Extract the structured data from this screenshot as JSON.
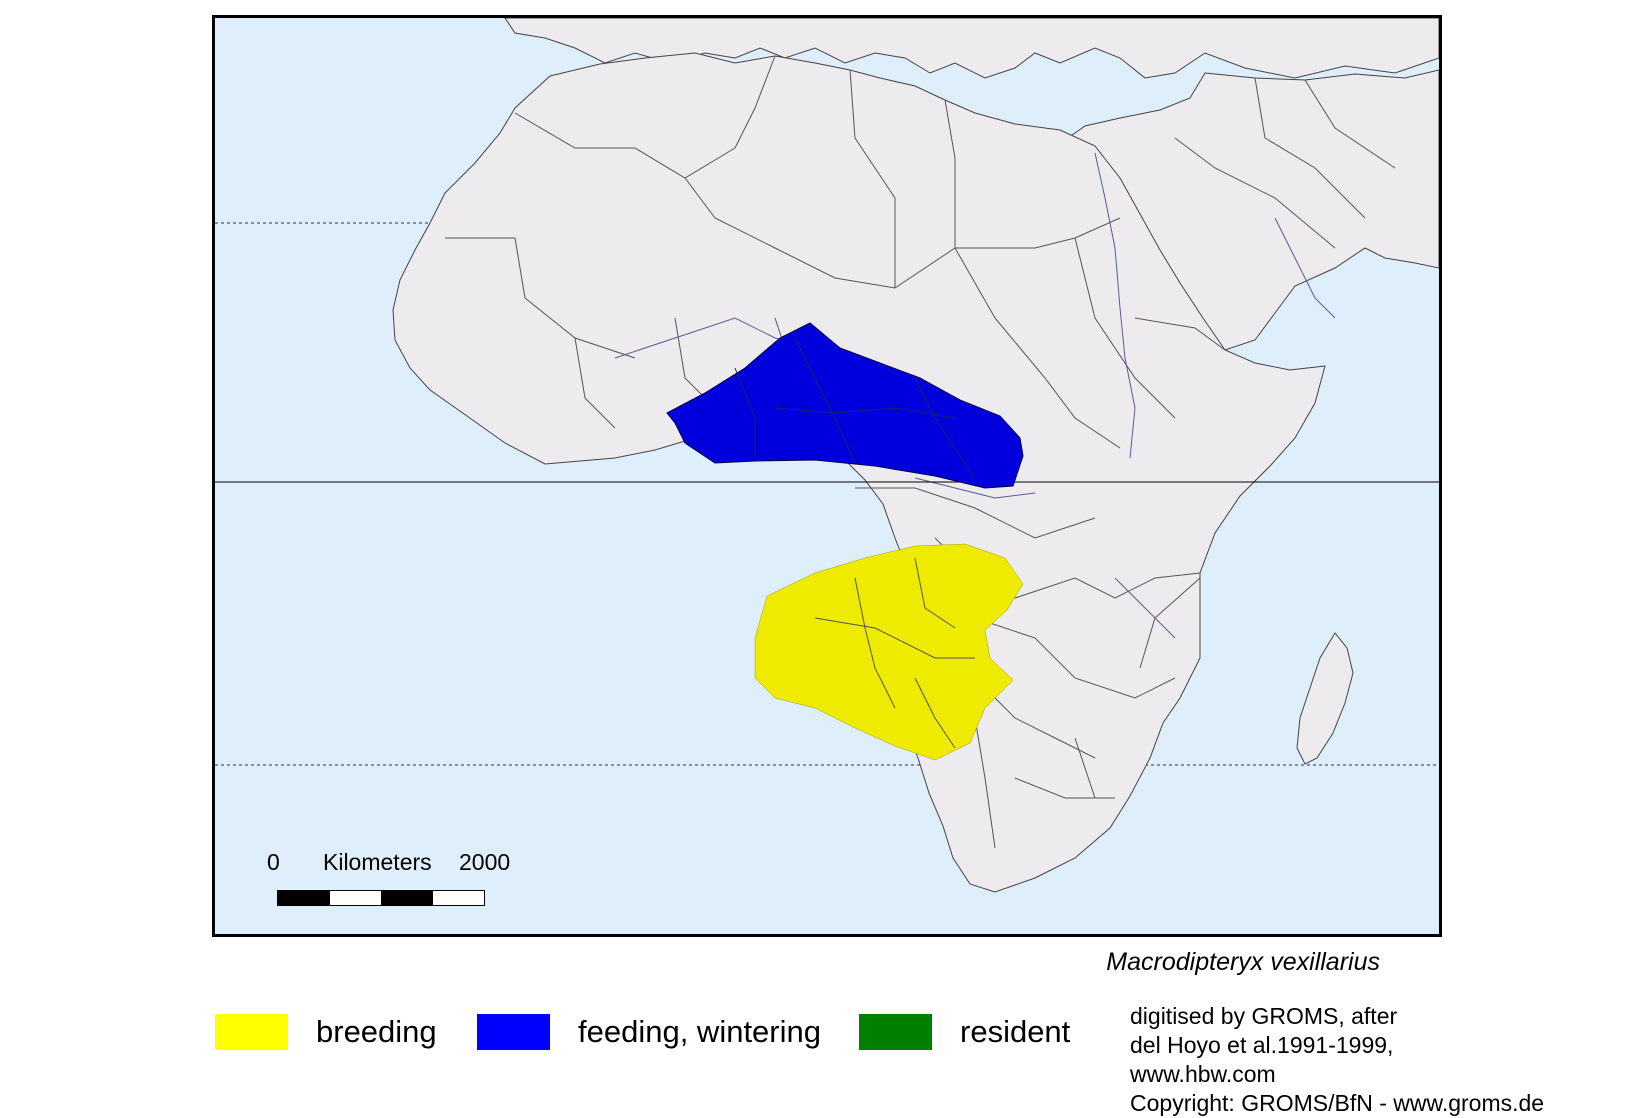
{
  "map": {
    "colors": {
      "ocean": "#dfeefb",
      "land": "#eeebef",
      "border": "#444444",
      "river": "#5a5a9a",
      "breeding": "#eeea00",
      "feeding": "#0000dd",
      "resident": "#007f00"
    },
    "reference_lines": [
      "tropic-of-cancer",
      "equator",
      "tropic-of-capricorn"
    ]
  },
  "scale": {
    "start": "0",
    "unit": "Kilometers",
    "end": "2000"
  },
  "species_name": "Macrodipteryx vexillarius",
  "legend": [
    {
      "label": "breeding",
      "color": "#ffff00"
    },
    {
      "label": "feeding, wintering",
      "color": "#0000ff"
    },
    {
      "label": "resident",
      "color": "#008000"
    }
  ],
  "credits": {
    "line1": "digitised by GROMS, after",
    "line2": "del Hoyo et al.1991-1999,",
    "line3": "www.hbw.com",
    "line4": "Copyright: GROMS/BfN - www.groms.de"
  }
}
